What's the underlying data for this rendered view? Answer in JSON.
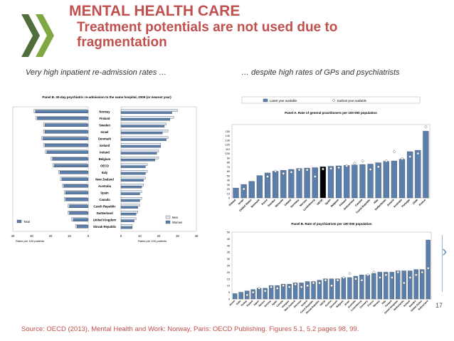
{
  "slide": {
    "title": "MENTAL HEALTH CARE",
    "subtitle_line1": "Treatment potentials are not used due to",
    "subtitle_line2": "fragmentation",
    "left_caption": "Very high inpatient re-admission rates …",
    "right_caption": "… despite high rates of GPs and psychiatrists",
    "footer": "Source: OECD (2013), Mental Health and Work: Norway, Paris: OECD Publishing. Figures 5.1, 5.2 pages 98, 99.",
    "page_number": "17",
    "accent": "#c0504d",
    "logo_icon": "oecd-chevrons-icon"
  },
  "chart_data": [
    {
      "type": "bar",
      "orientation": "horizontal-butterfly",
      "title": "Panel B. 30-day psychiatric re-admission to the same hospital, 2009 (or nearest year)",
      "categories": [
        "Norway",
        "Finland",
        "Sweden",
        "Israel",
        "Denmark",
        "Iceland",
        "Ireland",
        "Belgium",
        "OECD",
        "Italy",
        "New Zealand",
        "Australia",
        "Spain",
        "Canada",
        "Czech Republic",
        "Switzerland",
        "United Kingdom",
        "Slovak Republic"
      ],
      "series": [
        {
          "name": "Total",
          "side": "left",
          "color": "#5b7fad",
          "values": [
            28,
            27,
            23,
            23,
            24,
            23,
            22,
            19,
            18,
            15,
            14,
            13,
            12,
            12,
            10,
            10,
            8,
            6
          ]
        },
        {
          "name": "Men",
          "side": "right",
          "color": "#dce6f2",
          "values": [
            30,
            28,
            24,
            25,
            25,
            21,
            20,
            20,
            14,
            14,
            13,
            12,
            11,
            11,
            10,
            9,
            8,
            6
          ]
        },
        {
          "name": "Women",
          "side": "right",
          "color": "#5b7fad",
          "values": [
            27,
            26,
            23,
            22,
            24,
            21,
            19,
            18,
            13,
            13,
            12,
            11,
            10,
            10,
            9,
            8,
            7,
            6
          ]
        }
      ],
      "left_ticks": [
        "40",
        "30",
        "20",
        "10",
        "0"
      ],
      "right_ticks": [
        "0",
        "10",
        "20",
        "30",
        "40"
      ],
      "xlim": [
        0,
        40
      ],
      "left_xlabel": "Rates per 100 patients",
      "right_xlabel": "Rates per 100 patients",
      "legend_left": [
        "Total"
      ],
      "legend_right": [
        "Men",
        "Women"
      ]
    },
    {
      "type": "bar",
      "title": "Panel A. Rate of general practitioners per 100 000 population",
      "legend": [
        "Latest year available",
        "Earliest year available"
      ],
      "categories": [
        "Poland",
        "Israel",
        "United States",
        "Denmark",
        "Korea",
        "Sweden",
        "Slovenia",
        "Ireland",
        "Germany",
        "Norway",
        "Luxembourg",
        "OECD",
        "Spain",
        "Belgium",
        "Finland",
        "Switzerland",
        "Canada",
        "Czech Republic",
        "Italy",
        "Netherlands",
        "Austria",
        "Australia",
        "Portugal",
        "Chile",
        "France"
      ],
      "series": [
        {
          "name": "Latest year available",
          "values": [
            22,
            30,
            37,
            50,
            56,
            60,
            62,
            64,
            66,
            67,
            68,
            70,
            71,
            72,
            73,
            74,
            75,
            76,
            79,
            82,
            83,
            87,
            104,
            107,
            150
          ]
        },
        {
          "name": "Earliest year available",
          "values": [
            null,
            20,
            null,
            null,
            48,
            60,
            55,
            58,
            63,
            63,
            48,
            65,
            66,
            68,
            72,
            78,
            83,
            64,
            70,
            83,
            104,
            88,
            93,
            100,
            160
          ]
        }
      ],
      "highlight_category": "OECD",
      "yticks": [
        "0",
        "10",
        "20",
        "30",
        "40",
        "50",
        "60",
        "70",
        "80",
        "90",
        "100",
        "110",
        "120",
        "130",
        "140",
        "150"
      ],
      "ylim": [
        0,
        165
      ]
    },
    {
      "type": "bar",
      "title": "Panel B. Rate of psychiatrists per 100 000 population",
      "categories": [
        "Korea",
        "Chile",
        "Turkey",
        "Poland",
        "Japan",
        "Mexico",
        "Estonia",
        "Spain",
        "Canada",
        "Hungary",
        "New Zealand",
        "Slovenia",
        "Ireland",
        "Czech Republic",
        "Slovak Republic",
        "OECD",
        "Austria",
        "Denmark",
        "Belgium",
        "Israel",
        "Australia",
        "Luxembourg",
        "Germany",
        "France",
        "Norway",
        "Italy",
        "Finland",
        "United Kingdom",
        "Netherlands",
        "Iceland",
        "Sweden",
        "United States",
        "Switzerland"
      ],
      "series": [
        {
          "name": "Latest year available",
          "values": [
            4,
            5,
            6,
            7,
            8,
            8,
            10,
            10,
            11,
            11,
            12,
            12,
            13,
            13,
            14,
            15,
            15,
            15,
            16,
            16,
            17,
            18,
            18,
            19,
            20,
            20,
            20,
            21,
            21,
            21,
            22,
            22,
            44
          ]
        },
        {
          "name": "Earliest year available",
          "values": [
            null,
            null,
            3,
            5,
            8,
            6,
            9,
            8,
            10,
            9,
            11,
            9,
            10,
            12,
            12,
            14,
            10,
            14,
            16,
            19,
            15,
            14,
            18,
            20,
            16,
            18,
            16,
            20,
            12,
            16,
            18,
            20,
            23
          ]
        }
      ],
      "yticks": [
        "0",
        "5",
        "10",
        "15",
        "20",
        "25",
        "30",
        "35",
        "40",
        "45",
        "50"
      ],
      "ylim": [
        0,
        50
      ]
    }
  ]
}
